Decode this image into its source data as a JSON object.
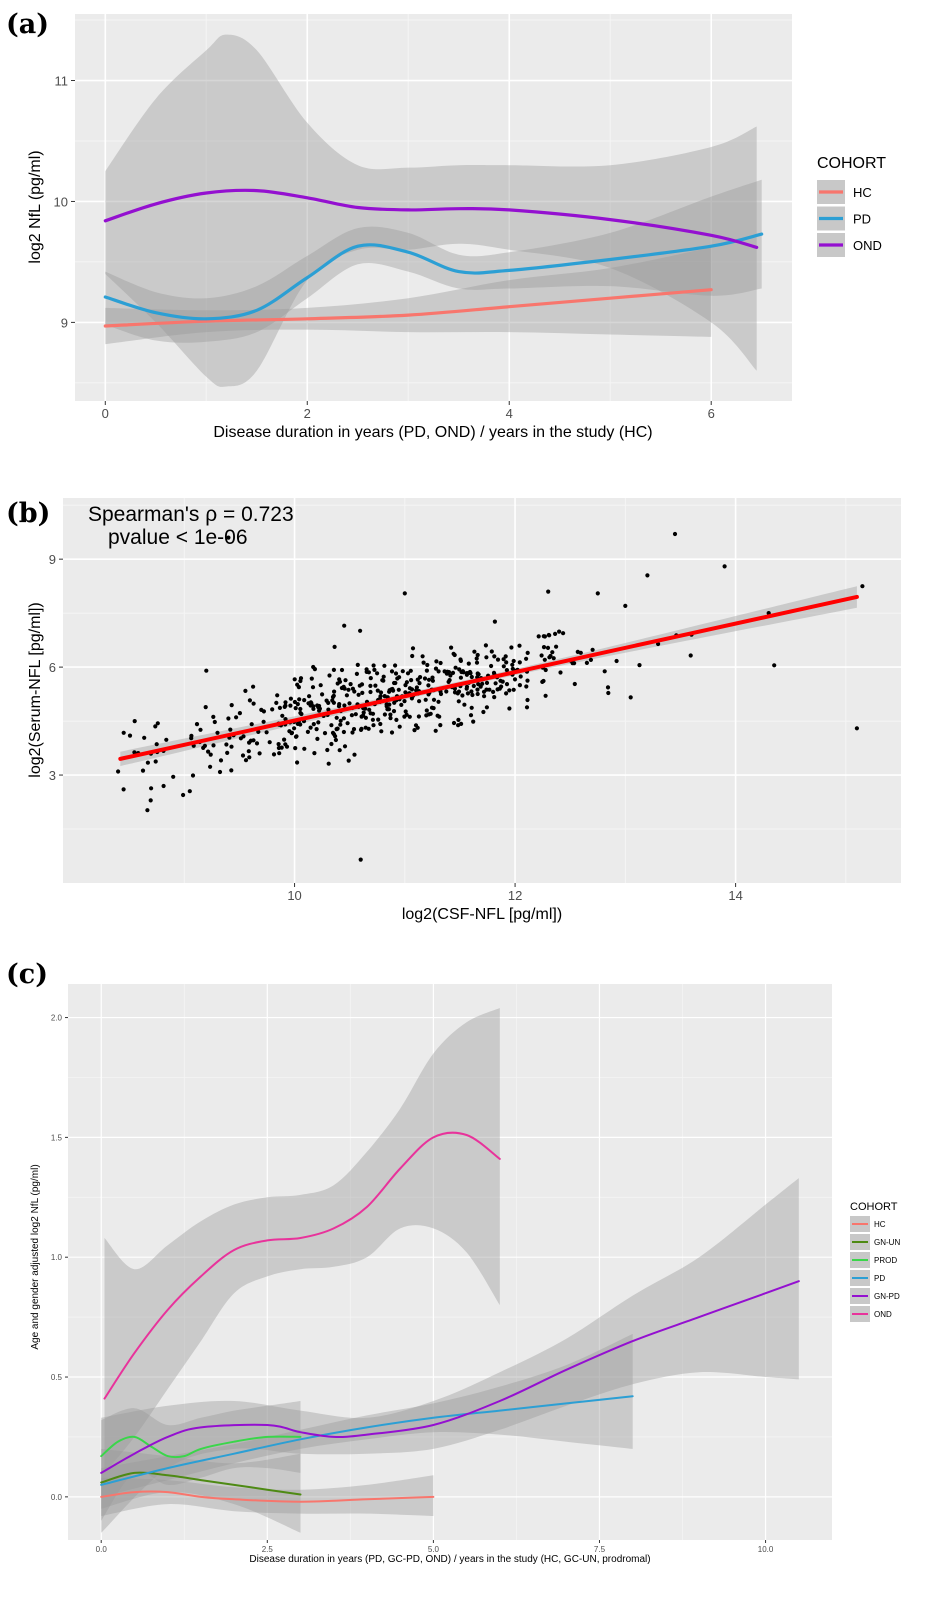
{
  "panels": {
    "a": {
      "label": "(a)",
      "legend_title": "COHORT",
      "chart_data": {
        "type": "line",
        "xlabel": "Disease duration in years (PD, OND) / years in the study (HC)",
        "ylabel": "log2 NfL (pg/ml)",
        "xlim": [
          -0.3,
          6.8
        ],
        "ylim": [
          8.35,
          11.55
        ],
        "x_ticks": [
          0,
          2,
          4,
          6
        ],
        "y_ticks": [
          9,
          10,
          11
        ],
        "grid": true,
        "legend_position": "right",
        "series": [
          {
            "name": "HC",
            "color": "#f8766d",
            "points": [
              [
                0,
                8.97
              ],
              [
                1,
                9.01
              ],
              [
                2,
                9.03
              ],
              [
                3,
                9.06
              ],
              [
                4,
                9.13
              ],
              [
                5,
                9.2
              ],
              [
                6,
                9.27
              ]
            ],
            "band": [
              [
                0,
                8.82,
                9.12
              ],
              [
                1,
                8.92,
                9.1
              ],
              [
                2,
                8.94,
                9.12
              ],
              [
                3,
                8.92,
                9.2
              ],
              [
                4,
                8.92,
                9.35
              ],
              [
                5,
                8.9,
                9.45
              ],
              [
                6,
                8.88,
                9.62
              ]
            ]
          },
          {
            "name": "PD",
            "color": "#2c9fd4",
            "points": [
              [
                0,
                9.21
              ],
              [
                0.5,
                9.08
              ],
              [
                1,
                9.03
              ],
              [
                1.5,
                9.1
              ],
              [
                2,
                9.37
              ],
              [
                2.5,
                9.63
              ],
              [
                3,
                9.58
              ],
              [
                3.5,
                9.42
              ],
              [
                4,
                9.43
              ],
              [
                5,
                9.52
              ],
              [
                6,
                9.63
              ],
              [
                6.5,
                9.73
              ]
            ],
            "band": [
              [
                0,
                8.98,
                9.42
              ],
              [
                0.5,
                8.85,
                9.25
              ],
              [
                1,
                8.84,
                9.2
              ],
              [
                1.5,
                8.92,
                9.3
              ],
              [
                2,
                9.2,
                9.55
              ],
              [
                2.5,
                9.48,
                9.78
              ],
              [
                3,
                9.42,
                9.74
              ],
              [
                3.5,
                9.28,
                9.56
              ],
              [
                4,
                9.28,
                9.58
              ],
              [
                5,
                9.3,
                9.74
              ],
              [
                6,
                9.22,
                10.04
              ],
              [
                6.5,
                9.28,
                10.18
              ]
            ]
          },
          {
            "name": "OND",
            "color": "#9410d0",
            "points": [
              [
                0,
                9.84
              ],
              [
                0.5,
                9.98
              ],
              [
                1,
                10.07
              ],
              [
                1.5,
                10.09
              ],
              [
                2,
                10.03
              ],
              [
                2.5,
                9.95
              ],
              [
                3,
                9.93
              ],
              [
                3.5,
                9.94
              ],
              [
                4,
                9.93
              ],
              [
                5,
                9.85
              ],
              [
                6,
                9.72
              ],
              [
                6.45,
                9.62
              ]
            ],
            "band": [
              [
                0,
                9.4,
                10.25
              ],
              [
                0.5,
                9.0,
                10.85
              ],
              [
                1,
                8.55,
                11.25
              ],
              [
                1.2,
                8.47,
                11.38
              ],
              [
                1.5,
                8.6,
                11.25
              ],
              [
                2,
                9.35,
                10.65
              ],
              [
                2.5,
                9.6,
                10.3
              ],
              [
                3,
                9.6,
                10.28
              ],
              [
                3.5,
                9.65,
                10.3
              ],
              [
                4,
                9.6,
                10.3
              ],
              [
                5,
                9.45,
                10.3
              ],
              [
                6,
                9.0,
                10.45
              ],
              [
                6.45,
                8.6,
                10.62
              ]
            ]
          }
        ]
      }
    },
    "b": {
      "label": "(b)",
      "annotation_line1": "Spearman's  ρ  = 0.723",
      "annotation_line2": "pvalue < 1e-06",
      "chart_data": {
        "type": "scatter",
        "xlabel": "log2(CSF-NFL [pg/ml])",
        "ylabel": "log2(Serum-NFL [pg/ml])",
        "xlim": [
          7.9,
          15.5
        ],
        "ylim": [
          0.0,
          10.7
        ],
        "x_ticks": [
          10,
          12,
          14
        ],
        "y_ticks": [
          3,
          6,
          9
        ],
        "grid": true,
        "point_color": "#000000",
        "fit": {
          "color": "#ff0000",
          "x": [
            8.42,
            15.1
          ],
          "y": [
            3.45,
            7.95
          ],
          "band_halfwidth": [
            0.2,
            0.08,
            0.3
          ]
        },
        "outliers": [
          [
            9.4,
            9.6
          ],
          [
            13.45,
            9.7
          ],
          [
            13.9,
            8.8
          ],
          [
            15.15,
            8.25
          ],
          [
            13.2,
            8.55
          ],
          [
            10.6,
            0.65
          ],
          [
            15.1,
            4.3
          ],
          [
            14.35,
            6.05
          ],
          [
            11.0,
            8.05
          ],
          [
            12.3,
            8.1
          ],
          [
            12.75,
            8.05
          ],
          [
            10.45,
            7.15
          ],
          [
            8.45,
            2.6
          ],
          [
            8.55,
            4.5
          ],
          [
            9.05,
            2.55
          ],
          [
            9.2,
            5.9
          ],
          [
            13.0,
            7.7
          ],
          [
            13.6,
            6.9
          ],
          [
            14.3,
            7.5
          ],
          [
            8.4,
            3.1
          ]
        ]
      }
    },
    "c": {
      "label": "(c)",
      "legend_title": "COHORT",
      "chart_data": {
        "type": "line",
        "xlabel": "Disease duration in years (PD, GC-PD, OND) / years in the study (HC, GC-UN, prodromal)",
        "ylabel": "Age and gender adjusted log2 NfL (pg/ml)",
        "xlim": [
          -0.5,
          11.0
        ],
        "ylim": [
          -0.18,
          2.14
        ],
        "x_ticks": [
          "0.0",
          "2.5",
          "5.0",
          "7.5",
          "10.0"
        ],
        "y_ticks": [
          "0.0",
          "0.5",
          "1.0",
          "1.5",
          "2.0"
        ],
        "grid": true,
        "legend_position": "right",
        "series": [
          {
            "name": "HC",
            "color": "#f8766d",
            "points": [
              [
                0,
                0.0
              ],
              [
                0.5,
                0.02
              ],
              [
                1,
                0.02
              ],
              [
                1.5,
                0.0
              ],
              [
                2,
                -0.01
              ],
              [
                3,
                -0.02
              ],
              [
                4,
                -0.01
              ],
              [
                5,
                0.0
              ]
            ],
            "band": [
              [
                0,
                -0.08,
                0.08
              ],
              [
                1,
                -0.03,
                0.07
              ],
              [
                2,
                -0.06,
                0.04
              ],
              [
                3,
                -0.07,
                0.03
              ],
              [
                4,
                -0.07,
                0.05
              ],
              [
                5,
                -0.08,
                0.09
              ]
            ]
          },
          {
            "name": "GN-UN",
            "color": "#4e8a14",
            "points": [
              [
                0,
                0.06
              ],
              [
                0.5,
                0.1
              ],
              [
                1,
                0.09
              ],
              [
                1.5,
                0.07
              ],
              [
                2,
                0.05
              ],
              [
                2.5,
                0.03
              ],
              [
                3,
                0.01
              ]
            ],
            "band": [
              [
                0,
                -0.05,
                0.2
              ],
              [
                1,
                0.02,
                0.17
              ],
              [
                2,
                -0.03,
                0.14
              ],
              [
                3,
                -0.15,
                0.18
              ]
            ]
          },
          {
            "name": "PROD",
            "color": "#3ad64a",
            "points": [
              [
                0,
                0.17
              ],
              [
                0.25,
                0.23
              ],
              [
                0.5,
                0.25
              ],
              [
                0.75,
                0.21
              ],
              [
                1,
                0.17
              ],
              [
                1.25,
                0.17
              ],
              [
                1.5,
                0.2
              ],
              [
                2,
                0.23
              ],
              [
                2.5,
                0.25
              ],
              [
                3,
                0.25
              ]
            ],
            "band": [
              [
                0,
                -0.1,
                0.32
              ],
              [
                0.5,
                0.1,
                0.37
              ],
              [
                1,
                0.05,
                0.3
              ],
              [
                1.5,
                0.08,
                0.33
              ],
              [
                2,
                0.12,
                0.36
              ],
              [
                2.5,
                0.12,
                0.38
              ],
              [
                3,
                0.1,
                0.4
              ]
            ]
          },
          {
            "name": "PD",
            "color": "#2c9fd4",
            "points": [
              [
                0,
                0.05
              ],
              [
                1,
                0.12
              ],
              [
                2,
                0.18
              ],
              [
                3,
                0.24
              ],
              [
                4,
                0.29
              ],
              [
                5,
                0.33
              ],
              [
                6,
                0.36
              ],
              [
                7,
                0.39
              ],
              [
                8,
                0.42
              ]
            ],
            "band": [
              [
                0,
                0.0,
                0.12
              ],
              [
                1,
                0.07,
                0.17
              ],
              [
                2,
                0.14,
                0.22
              ],
              [
                3,
                0.2,
                0.28
              ],
              [
                4,
                0.24,
                0.34
              ],
              [
                5,
                0.27,
                0.39
              ],
              [
                6,
                0.26,
                0.46
              ],
              [
                7,
                0.23,
                0.55
              ],
              [
                8,
                0.2,
                0.68
              ]
            ]
          },
          {
            "name": "GN-PD",
            "color": "#9410d0",
            "points": [
              [
                0,
                0.1
              ],
              [
                0.5,
                0.18
              ],
              [
                1,
                0.25
              ],
              [
                1.5,
                0.29
              ],
              [
                2.5,
                0.3
              ],
              [
                3,
                0.27
              ],
              [
                3.5,
                0.25
              ],
              [
                4,
                0.26
              ],
              [
                5,
                0.3
              ],
              [
                6,
                0.4
              ],
              [
                7,
                0.53
              ],
              [
                8,
                0.65
              ],
              [
                9,
                0.75
              ],
              [
                10,
                0.85
              ],
              [
                10.5,
                0.9
              ]
            ],
            "band": [
              [
                0,
                -0.15,
                0.33
              ],
              [
                1,
                0.12,
                0.38
              ],
              [
                2,
                0.2,
                0.4
              ],
              [
                3,
                0.18,
                0.36
              ],
              [
                4,
                0.18,
                0.33
              ],
              [
                5,
                0.2,
                0.4
              ],
              [
                6,
                0.28,
                0.52
              ],
              [
                7,
                0.38,
                0.66
              ],
              [
                8,
                0.47,
                0.84
              ],
              [
                9,
                0.52,
                1.0
              ],
              [
                10,
                0.5,
                1.22
              ],
              [
                10.5,
                0.49,
                1.33
              ]
            ]
          },
          {
            "name": "OND",
            "color": "#e8339b",
            "points": [
              [
                0.05,
                0.41
              ],
              [
                0.5,
                0.6
              ],
              [
                1,
                0.78
              ],
              [
                1.5,
                0.92
              ],
              [
                2,
                1.03
              ],
              [
                2.5,
                1.07
              ],
              [
                3,
                1.08
              ],
              [
                3.5,
                1.12
              ],
              [
                4,
                1.21
              ],
              [
                4.5,
                1.37
              ],
              [
                5,
                1.5
              ],
              [
                5.5,
                1.51
              ],
              [
                6,
                1.41
              ]
            ],
            "band": [
              [
                0.05,
                0.1,
                1.08
              ],
              [
                0.5,
                0.25,
                0.95
              ],
              [
                1,
                0.45,
                1.05
              ],
              [
                1.5,
                0.65,
                1.15
              ],
              [
                2,
                0.85,
                1.22
              ],
              [
                2.5,
                0.92,
                1.25
              ],
              [
                3,
                0.95,
                1.26
              ],
              [
                3.5,
                0.96,
                1.3
              ],
              [
                4,
                1.0,
                1.44
              ],
              [
                4.5,
                1.12,
                1.62
              ],
              [
                5,
                1.12,
                1.85
              ],
              [
                5.5,
                1.02,
                1.98
              ],
              [
                6,
                0.8,
                2.04
              ]
            ]
          }
        ]
      }
    }
  }
}
